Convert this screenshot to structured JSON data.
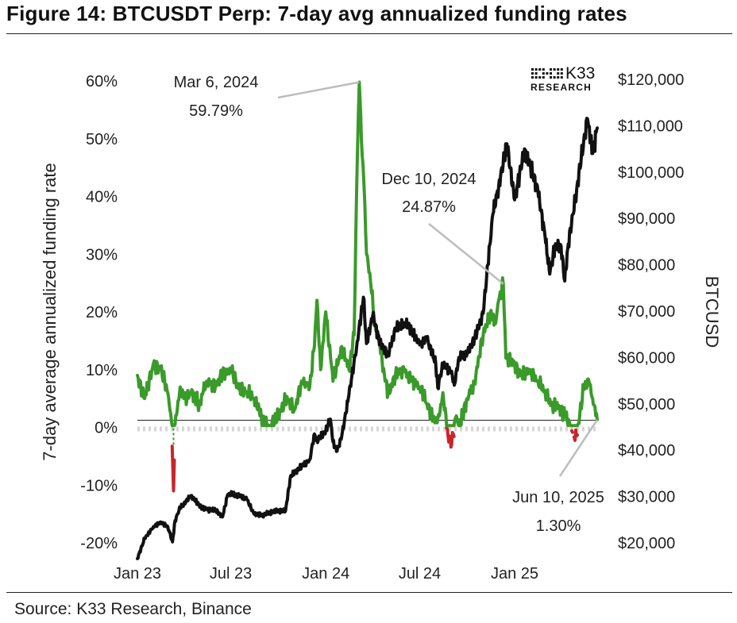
{
  "figure": {
    "title": "Figure 14: BTCUSDT Perp: 7-day avg annualized funding rates",
    "source": "Source: K33 Research, Binance",
    "logo": {
      "main": "K33",
      "sub": "RESEARCH"
    }
  },
  "chart_data": {
    "type": "line",
    "title": "Figure 14: BTCUSDT Perp: 7-day avg annualized funding rates",
    "ylabel": "7-day average annualized funding rate",
    "y2label": "BTCUSD",
    "xlabel": "",
    "x_ticks": [
      "Jan 23",
      "Jul 23",
      "Jan 24",
      "Jul 24",
      "Jan 25"
    ],
    "y_ticks": [
      "60%",
      "50%",
      "40%",
      "30%",
      "20%",
      "10%",
      "0%",
      "-10%",
      "-20%"
    ],
    "y2_ticks": [
      "$120,000",
      "$110,000",
      "$100,000",
      "$90,000",
      "$80,000",
      "$70,000",
      "$60,000",
      "$50,000",
      "$40,000",
      "$30,000",
      "$20,000"
    ],
    "ylim": [
      -20,
      60
    ],
    "y2lim": [
      20000,
      120000
    ],
    "xlim": [
      "2023-01-01",
      "2025-06-10"
    ],
    "legend": "none",
    "grid": false,
    "colors": {
      "funding_positive": "#3a9a2a",
      "funding_negative": "#c8252c",
      "btcusd": "#111111"
    },
    "series": [
      {
        "axis": "left",
        "x": [
          "2023-01-01",
          "2023-01-15",
          "2023-02-01",
          "2023-02-15",
          "2023-03-01",
          "2023-03-08",
          "2023-03-12",
          "2023-03-15",
          "2023-03-25",
          "2023-04-01",
          "2023-04-15",
          "2023-05-01",
          "2023-05-15",
          "2023-06-01",
          "2023-06-15",
          "2023-07-01",
          "2023-07-15",
          "2023-08-01",
          "2023-08-15",
          "2023-08-25",
          "2023-09-01",
          "2023-09-15",
          "2023-10-01",
          "2023-10-15",
          "2023-11-01",
          "2023-11-15",
          "2023-12-01",
          "2023-12-10",
          "2023-12-15",
          "2023-12-22",
          "2024-01-01",
          "2024-01-15",
          "2024-02-01",
          "2024-02-15",
          "2024-02-25",
          "2024-03-01",
          "2024-03-06",
          "2024-03-10",
          "2024-03-15",
          "2024-03-20",
          "2024-03-28",
          "2024-04-05",
          "2024-04-15",
          "2024-04-25",
          "2024-05-01",
          "2024-05-15",
          "2024-06-01",
          "2024-06-15",
          "2024-07-01",
          "2024-07-15",
          "2024-08-01",
          "2024-08-08",
          "2024-08-15",
          "2024-08-25",
          "2024-09-01",
          "2024-09-10",
          "2024-09-15",
          "2024-10-01",
          "2024-10-15",
          "2024-11-01",
          "2024-11-15",
          "2024-11-25",
          "2024-12-01",
          "2024-12-10",
          "2024-12-15",
          "2025-01-01",
          "2025-01-15",
          "2025-02-01",
          "2025-02-15",
          "2025-03-01",
          "2025-03-15",
          "2025-04-01",
          "2025-04-10",
          "2025-04-20",
          "2025-05-01",
          "2025-05-15",
          "2025-05-25",
          "2025-06-01",
          "2025-06-10"
        ],
        "values": [
          9,
          5,
          11,
          10,
          6,
          1,
          -11,
          0.5,
          7,
          5,
          6,
          4,
          8,
          7,
          9,
          10,
          7,
          6,
          5,
          3,
          1,
          0,
          2,
          5,
          3,
          8,
          7,
          14,
          22,
          10,
          20,
          8,
          14,
          10,
          16,
          42,
          59.79,
          50,
          42,
          30,
          25,
          18,
          14,
          8,
          6,
          9,
          10,
          8,
          7,
          4,
          1,
          2,
          6,
          -1.5,
          -3,
          2,
          0,
          5,
          8,
          16,
          20,
          18,
          22,
          24.87,
          12,
          11,
          9,
          10,
          8,
          6,
          4,
          3,
          2,
          0,
          -1.5,
          7,
          8,
          5,
          1.3
        ]
      },
      {
        "axis": "right",
        "x": [
          "2023-01-01",
          "2023-01-15",
          "2023-02-01",
          "2023-02-15",
          "2023-03-01",
          "2023-03-10",
          "2023-03-15",
          "2023-03-25",
          "2023-04-01",
          "2023-04-15",
          "2023-05-01",
          "2023-05-15",
          "2023-06-01",
          "2023-06-15",
          "2023-06-25",
          "2023-07-01",
          "2023-07-15",
          "2023-08-01",
          "2023-08-15",
          "2023-09-01",
          "2023-09-15",
          "2023-10-01",
          "2023-10-15",
          "2023-10-25",
          "2023-11-01",
          "2023-11-15",
          "2023-12-01",
          "2023-12-10",
          "2023-12-15",
          "2024-01-01",
          "2024-01-10",
          "2024-01-15",
          "2024-01-23",
          "2024-02-01",
          "2024-02-15",
          "2024-03-01",
          "2024-03-14",
          "2024-03-20",
          "2024-04-01",
          "2024-04-15",
          "2024-05-01",
          "2024-05-15",
          "2024-06-01",
          "2024-06-15",
          "2024-07-01",
          "2024-07-15",
          "2024-08-01",
          "2024-08-05",
          "2024-08-15",
          "2024-09-01",
          "2024-09-06",
          "2024-09-15",
          "2024-10-01",
          "2024-10-15",
          "2024-11-01",
          "2024-11-10",
          "2024-11-20",
          "2024-12-01",
          "2024-12-17",
          "2025-01-01",
          "2025-01-20",
          "2025-02-01",
          "2025-02-15",
          "2025-03-01",
          "2025-03-10",
          "2025-03-20",
          "2025-04-01",
          "2025-04-08",
          "2025-04-15",
          "2025-05-01",
          "2025-05-10",
          "2025-05-22",
          "2025-06-01",
          "2025-06-10"
        ],
        "values": [
          16600,
          20900,
          23500,
          24500,
          23500,
          20200,
          24800,
          27700,
          28400,
          30200,
          28000,
          27200,
          27100,
          25600,
          30400,
          30500,
          30300,
          29400,
          26200,
          25900,
          26600,
          27000,
          26900,
          34500,
          35000,
          36500,
          38000,
          43500,
          42000,
          44200,
          46700,
          41800,
          39800,
          43000,
          52000,
          62500,
          73000,
          63000,
          69000,
          63200,
          60600,
          66200,
          67500,
          66000,
          62700,
          64000,
          58800,
          53500,
          58500,
          57000,
          54000,
          60000,
          60800,
          64000,
          69500,
          80000,
          91000,
          97000,
          106100,
          94000,
          105000,
          101000,
          96000,
          86000,
          78000,
          84000,
          84000,
          76500,
          84500,
          96000,
          103000,
          111500,
          104000,
          109500
        ]
      }
    ],
    "annotations": [
      {
        "date": "Mar 6, 2024",
        "value": "59.79%"
      },
      {
        "date": "Dec 10, 2024",
        "value": "24.87%"
      },
      {
        "date": "Jun 10, 2025",
        "value": "1.30%"
      }
    ]
  }
}
